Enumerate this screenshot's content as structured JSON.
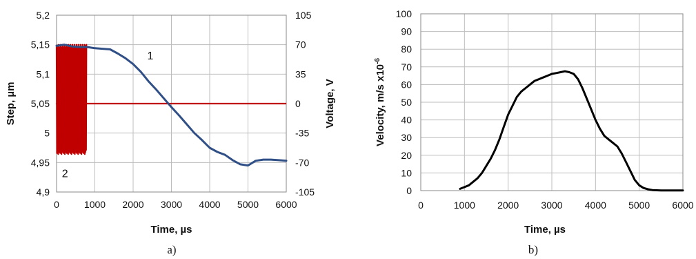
{
  "chart_data": [
    {
      "panel_label": "a)",
      "type": "line",
      "xlabel": "Time, µs",
      "ylabel": "Step,  µm",
      "y2label": "Voltage, V",
      "xlim": [
        0,
        6000
      ],
      "ylim": [
        4.9,
        5.2
      ],
      "y2lim": [
        -105,
        105
      ],
      "grid": true,
      "x_ticks": [
        "0",
        "1000",
        "2000",
        "3000",
        "4000",
        "5000",
        "6000"
      ],
      "y_ticks": [
        "4,9",
        "4,95",
        "5",
        "5,05",
        "5,1",
        "5,15",
        "5,2"
      ],
      "y2_ticks": [
        "-105",
        "-70",
        "-35",
        "0",
        "35",
        "70",
        "105"
      ],
      "annotations": [
        {
          "text": "1",
          "x": 2450,
          "y": 5.125
        },
        {
          "text": "2",
          "x": 220,
          "y": 4.925
        }
      ],
      "series": [
        {
          "name": "1",
          "axis": "left",
          "color": "#2f4f86",
          "x": [
            0,
            200,
            400,
            600,
            800,
            1000,
            1200,
            1400,
            1600,
            1800,
            2000,
            2200,
            2400,
            2600,
            2800,
            3000,
            3200,
            3400,
            3600,
            3800,
            4000,
            4200,
            4400,
            4600,
            4800,
            5000,
            5200,
            5400,
            5600,
            5800,
            6000
          ],
          "y": [
            5.148,
            5.15,
            5.147,
            5.146,
            5.146,
            5.144,
            5.143,
            5.142,
            5.135,
            5.127,
            5.117,
            5.104,
            5.088,
            5.074,
            5.059,
            5.044,
            5.03,
            5.015,
            5.0,
            4.988,
            4.975,
            4.968,
            4.963,
            4.954,
            4.947,
            4.945,
            4.953,
            4.955,
            4.955,
            4.954,
            4.953
          ]
        },
        {
          "name": "2",
          "axis": "right",
          "color": "#c00000",
          "x": [
            0,
            780,
            780,
            6000
          ],
          "y": [
            0,
            0,
            0,
            0
          ],
          "oscillation": {
            "x_from": 0,
            "x_to": 780,
            "min": -60,
            "max": 70
          }
        }
      ]
    },
    {
      "panel_label": "b)",
      "type": "line",
      "xlabel": "Time, µs",
      "ylabel": "Velocity, m/s x10",
      "ylabel_superscript": "-6",
      "xlim": [
        0,
        6000
      ],
      "ylim": [
        0,
        100
      ],
      "grid": true,
      "x_ticks": [
        "0",
        "1000",
        "2000",
        "3000",
        "4000",
        "5000",
        "6000"
      ],
      "y_ticks": [
        "0",
        "10",
        "20",
        "30",
        "40",
        "50",
        "60",
        "70",
        "80",
        "90",
        "100"
      ],
      "series": [
        {
          "name": "",
          "axis": "left",
          "color": "#000000",
          "x": [
            900,
            1000,
            1100,
            1200,
            1300,
            1400,
            1500,
            1600,
            1700,
            1800,
            1900,
            2000,
            2100,
            2200,
            2300,
            2400,
            2500,
            2600,
            2700,
            2800,
            2900,
            3000,
            3100,
            3200,
            3300,
            3400,
            3500,
            3600,
            3700,
            3800,
            3900,
            4000,
            4100,
            4200,
            4300,
            4400,
            4500,
            4600,
            4700,
            4800,
            4900,
            5000,
            5100,
            5200,
            5300,
            5400,
            5500,
            5600,
            5700,
            5800,
            6000
          ],
          "y": [
            1,
            2,
            3,
            5,
            7,
            10,
            14,
            18,
            23,
            29,
            36,
            43,
            48,
            53,
            56,
            58,
            60,
            62,
            63,
            64,
            65,
            66,
            66.5,
            67,
            67.5,
            67,
            66,
            63,
            58,
            52,
            46,
            40,
            35,
            31,
            29,
            27,
            25,
            21,
            16,
            11,
            6,
            3,
            1.5,
            0.8,
            0.3,
            0.2,
            0.1,
            0.1,
            0.1,
            0.1,
            0.1
          ]
        }
      ]
    }
  ]
}
